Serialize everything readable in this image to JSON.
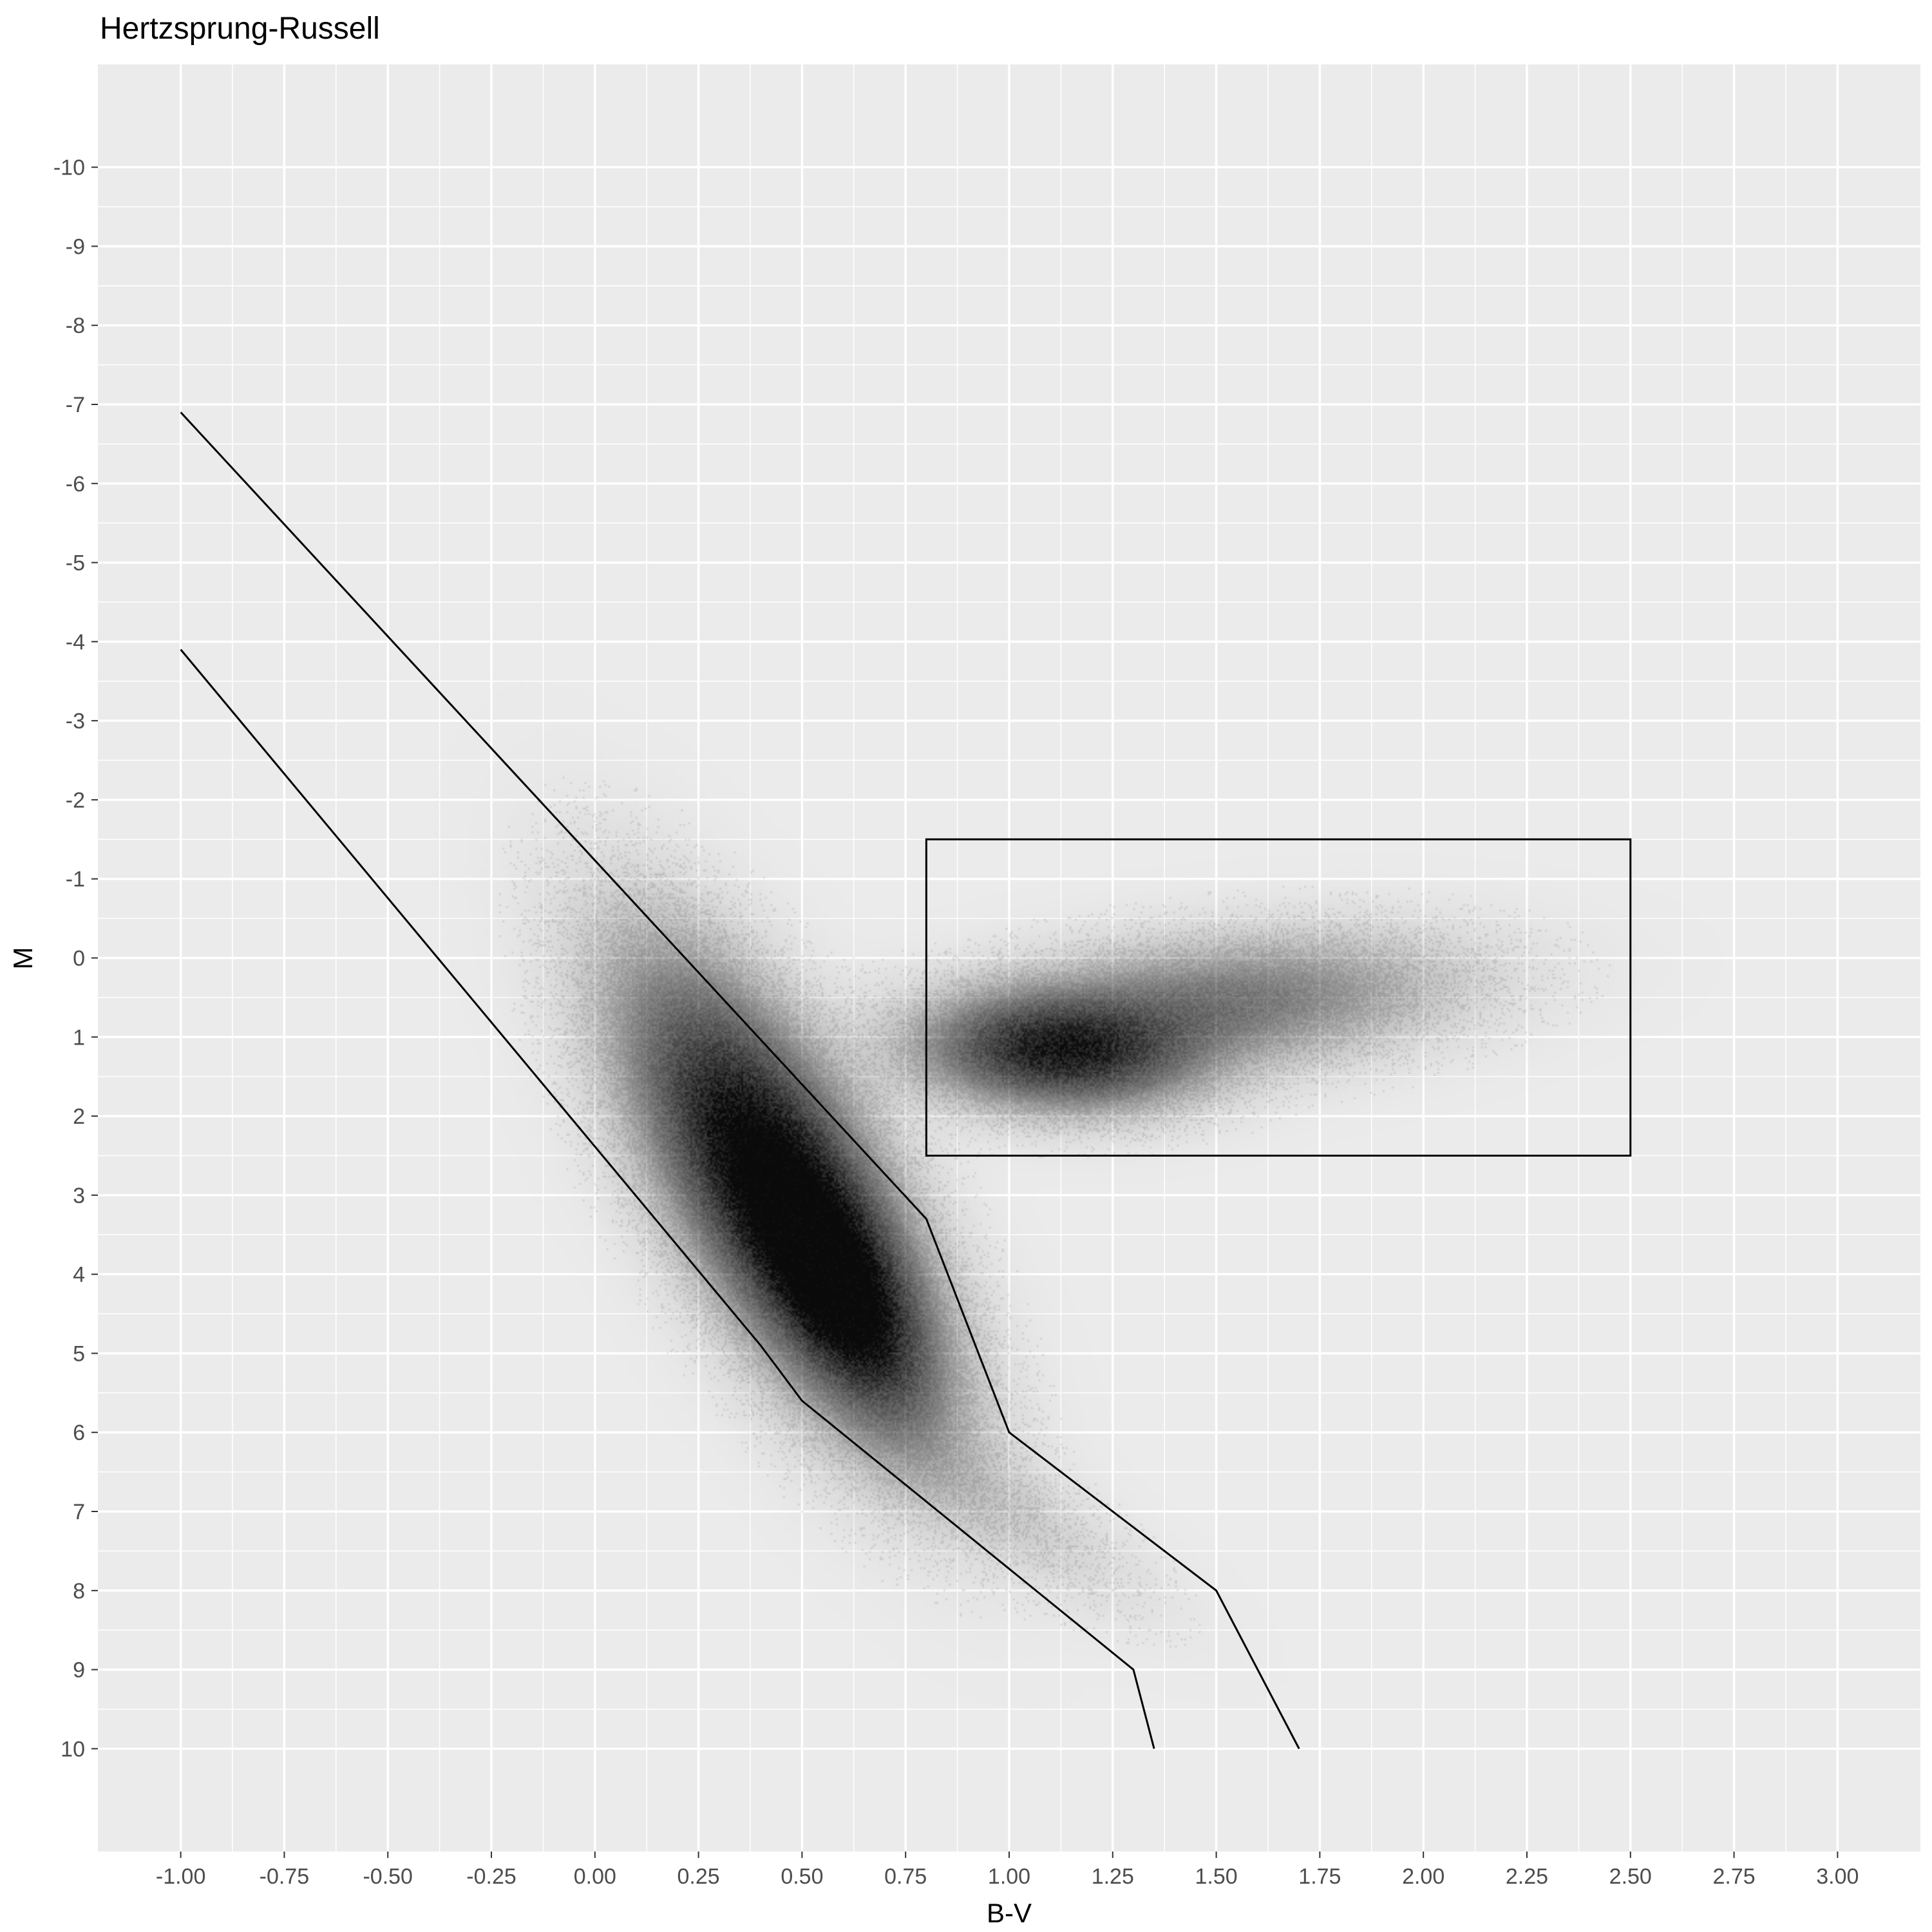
{
  "chart_data": {
    "type": "scatter",
    "title": "Hertzsprung-Russell",
    "xlabel": "B-V",
    "ylabel": "M",
    "xlim": [
      -1.2,
      3.2
    ],
    "ylim": [
      11.3,
      -11.3
    ],
    "y_reversed": true,
    "grid": true,
    "x_ticks": [
      "-1.00",
      "-0.75",
      "-0.50",
      "-0.25",
      "0.00",
      "0.25",
      "0.50",
      "0.75",
      "1.00",
      "1.25",
      "1.50",
      "1.75",
      "2.00",
      "2.25",
      "2.50",
      "2.75",
      "3.00"
    ],
    "y_ticks": [
      "-10",
      "-9",
      "-8",
      "-7",
      "-6",
      "-5",
      "-4",
      "-3",
      "-2",
      "-1",
      "0",
      "1",
      "2",
      "3",
      "4",
      "5",
      "6",
      "7",
      "8",
      "9",
      "10"
    ],
    "density_clusters": [
      {
        "cx": 0.45,
        "cy": 3.0,
        "sx": 0.22,
        "sy": 1.7,
        "rho": 0.7,
        "weight": 0.55
      },
      {
        "cx": 0.6,
        "cy": 4.3,
        "sx": 0.12,
        "sy": 0.9,
        "rho": 0.6,
        "weight": 0.25
      },
      {
        "cx": 1.12,
        "cy": 1.2,
        "sx": 0.2,
        "sy": 0.45,
        "rho": 0.1,
        "weight": 0.35
      },
      {
        "cx": 1.5,
        "cy": 0.6,
        "sx": 0.35,
        "sy": 0.55,
        "rho": -0.3,
        "weight": 0.18
      },
      {
        "cx": 1.0,
        "cy": 7.0,
        "sx": 0.22,
        "sy": 0.8,
        "rho": 0.8,
        "weight": 0.04
      }
    ],
    "lines": [
      {
        "x": [
          -1.0,
          0.8,
          1.0,
          1.5,
          1.7
        ],
        "y": [
          -6.9,
          3.3,
          6.0,
          8.0,
          10.0
        ]
      },
      {
        "x": [
          -1.0,
          0.4,
          0.5,
          1.3,
          1.35
        ],
        "y": [
          -3.9,
          4.9,
          5.6,
          9.0,
          10.0
        ]
      }
    ],
    "rectangle": {
      "x": [
        0.8,
        2.5
      ],
      "y": [
        -1.5,
        2.5
      ]
    },
    "colors": {
      "panel": "#ebebeb",
      "grid": "#ffffff",
      "points": "#000000",
      "lines": "#000000"
    }
  }
}
